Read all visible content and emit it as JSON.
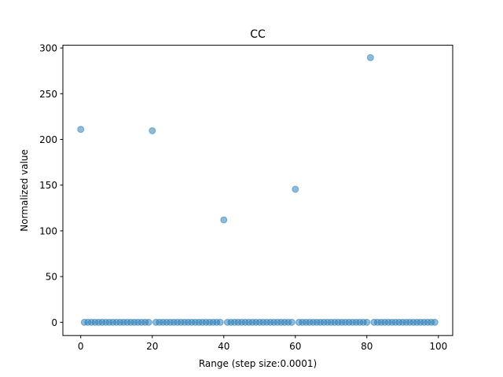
{
  "chart_data": {
    "type": "scatter",
    "title": "CC",
    "xlabel": "Range (step size:0.0001)",
    "ylabel": "Normalized value",
    "xlim": [
      -5,
      104
    ],
    "ylim": [
      -14.5,
      303
    ],
    "xticks": [
      0,
      20,
      40,
      60,
      80,
      100
    ],
    "yticks": [
      0,
      50,
      100,
      150,
      200,
      250,
      300
    ],
    "grid": false,
    "marker_color": "#1f77b4",
    "marker_alpha": 0.5,
    "series": [
      {
        "x": [
          0,
          1,
          2,
          3,
          4,
          5,
          6,
          7,
          8,
          9,
          10,
          11,
          12,
          13,
          14,
          15,
          16,
          17,
          18,
          19,
          20,
          21,
          22,
          23,
          24,
          25,
          26,
          27,
          28,
          29,
          30,
          31,
          32,
          33,
          34,
          35,
          36,
          37,
          38,
          39,
          40,
          41,
          42,
          43,
          44,
          45,
          46,
          47,
          48,
          49,
          50,
          51,
          52,
          53,
          54,
          55,
          56,
          57,
          58,
          59,
          60,
          61,
          62,
          63,
          64,
          65,
          66,
          67,
          68,
          69,
          70,
          71,
          72,
          73,
          74,
          75,
          76,
          77,
          78,
          79,
          80,
          81,
          82,
          83,
          84,
          85,
          86,
          87,
          88,
          89,
          90,
          91,
          92,
          93,
          94,
          95,
          96,
          97,
          98,
          99
        ],
        "y": [
          211,
          0,
          0,
          0,
          0,
          0,
          0,
          0,
          0,
          0,
          0,
          0,
          0,
          0,
          0,
          0,
          0,
          0,
          0,
          0,
          209.5,
          0,
          0,
          0,
          0,
          0,
          0,
          0,
          0,
          0,
          0,
          0,
          0,
          0,
          0,
          0,
          0,
          0,
          0,
          0,
          112,
          0,
          0,
          0,
          0,
          0,
          0,
          0,
          0,
          0,
          0,
          0,
          0,
          0,
          0,
          0,
          0,
          0,
          0,
          0,
          145.5,
          0,
          0,
          0,
          0,
          0,
          0,
          0,
          0,
          0,
          0,
          0,
          0,
          0,
          0,
          0,
          0,
          0,
          0,
          0,
          0,
          289.5,
          0,
          0,
          0,
          0,
          0,
          0,
          0,
          0,
          0,
          0,
          0,
          0,
          0,
          0,
          0,
          0,
          0,
          0
        ]
      }
    ]
  }
}
